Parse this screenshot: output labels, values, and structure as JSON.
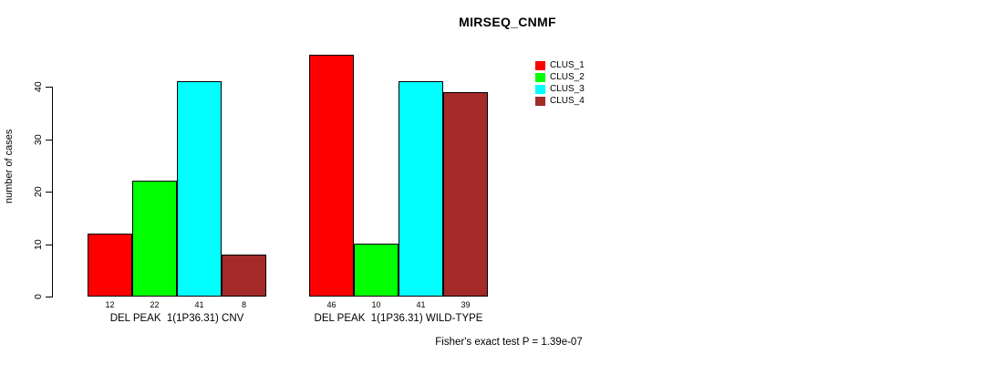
{
  "chart_data": {
    "type": "bar",
    "title": "MIRSEQ_CNMF",
    "ylabel": "number of cases",
    "yticks": [
      0,
      10,
      20,
      30,
      40
    ],
    "ylim": [
      0,
      46
    ],
    "categories": [
      "DEL PEAK  1(1P36.31) CNV",
      "DEL PEAK  1(1P36.31) WILD-TYPE"
    ],
    "series": [
      {
        "name": "CLUS_1",
        "color": "#ff0000",
        "values": [
          12,
          46
        ]
      },
      {
        "name": "CLUS_2",
        "color": "#00ff00",
        "values": [
          22,
          10
        ]
      },
      {
        "name": "CLUS_3",
        "color": "#00ffff",
        "values": [
          41,
          41
        ]
      },
      {
        "name": "CLUS_4",
        "color": "#a52a2a",
        "values": [
          8,
          39
        ]
      }
    ],
    "bar_value_labels": [
      [
        12,
        22,
        41,
        8
      ],
      [
        46,
        10,
        41,
        39
      ]
    ],
    "legend_position": "right-top",
    "grid": false,
    "footnote": "Fisher's exact test P = 1.39e-07"
  }
}
